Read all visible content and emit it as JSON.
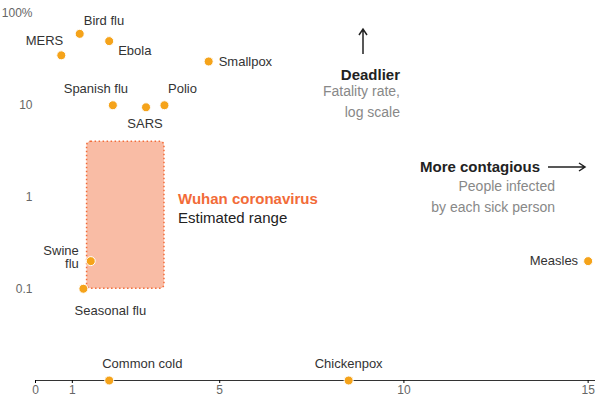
{
  "chart_data": {
    "type": "scatter",
    "categories": [
      "MERS",
      "Bird flu",
      "Ebola",
      "Smallpox",
      "Spanish flu",
      "SARS",
      "Polio",
      "Swine flu",
      "Seasonal flu",
      "Common cold",
      "Chickenpox",
      "Measles"
    ],
    "x": [
      0.7,
      1.2,
      2,
      4.7,
      2.1,
      3,
      3.5,
      1.5,
      1.3,
      2,
      8.5,
      15
    ],
    "values": [
      35,
      60,
      50,
      30,
      10,
      9.5,
      10,
      0.2,
      0.1,
      0.01,
      0.01,
      0.2
    ],
    "color": "#f5a31a",
    "xlim": [
      0,
      15.2
    ],
    "xticks": [
      0,
      1,
      5,
      10,
      15
    ],
    "ylim": [
      0.01,
      100
    ],
    "yticks": [
      {
        "value": 100,
        "label": "100%"
      },
      10,
      1,
      0.1
    ],
    "log": "y",
    "ylabel": {
      "title": "Deadlier",
      "lines": [
        "Fatality rate,",
        "log scale"
      ]
    },
    "xlabel": {
      "title": "More contagious",
      "lines": [
        "People infected",
        "by each sick person"
      ]
    },
    "estimate": {
      "name": "Wuhan coronavirus",
      "label": "Estimated range",
      "x": [
        1.4,
        3.5
      ],
      "y": [
        0.1,
        4
      ],
      "color": "#f26b38"
    }
  }
}
